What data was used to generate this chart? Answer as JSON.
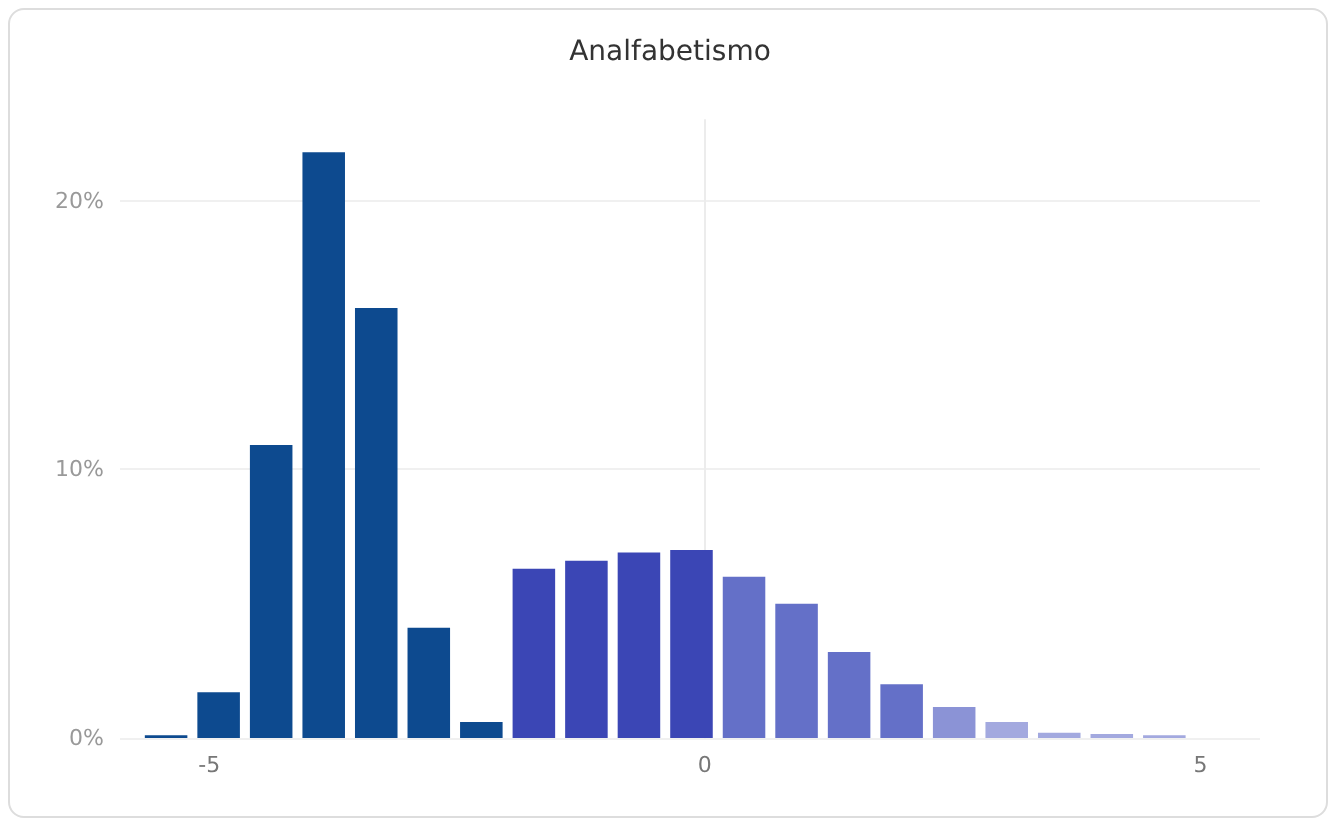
{
  "chart_data": {
    "type": "histogram",
    "title": "Analfabetismo",
    "bins": [
      -5.7,
      -5.17,
      -4.64,
      -4.11,
      -3.58,
      -3.05,
      -2.52,
      -1.99,
      -1.46,
      -0.93,
      -0.4,
      0.13,
      0.66,
      1.19,
      1.72,
      2.25,
      2.78,
      3.31,
      3.84,
      4.37,
      4.9
    ],
    "values": [
      0.1,
      1.7,
      10.9,
      21.8,
      16.0,
      4.1,
      0.6,
      6.3,
      6.6,
      6.9,
      7.0,
      6.0,
      5.0,
      3.2,
      2.0,
      1.15,
      0.6,
      0.2,
      0.15,
      0.1
    ],
    "colors": [
      "#0d4a8f",
      "#0d4a8f",
      "#0d4a8f",
      "#0d4a8f",
      "#0d4a8f",
      "#0d4a8f",
      "#0d4a8f",
      "#3b46b5",
      "#3b46b5",
      "#3b46b5",
      "#3b46b5",
      "#6470c8",
      "#6470c8",
      "#6470c8",
      "#6470c8",
      "#8b93d6",
      "#a3a9df",
      "#a3a9df",
      "#a3a9df",
      "#a3a9df"
    ],
    "xlim": [
      -5.9,
      5.6
    ],
    "xticks": [
      -5,
      0,
      5
    ],
    "ylim": [
      0,
      23
    ],
    "yticks": [
      {
        "value": 0,
        "label": "0%"
      },
      {
        "value": 10,
        "label": "10%"
      },
      {
        "value": 20,
        "label": "20%"
      }
    ],
    "grid": "y"
  }
}
